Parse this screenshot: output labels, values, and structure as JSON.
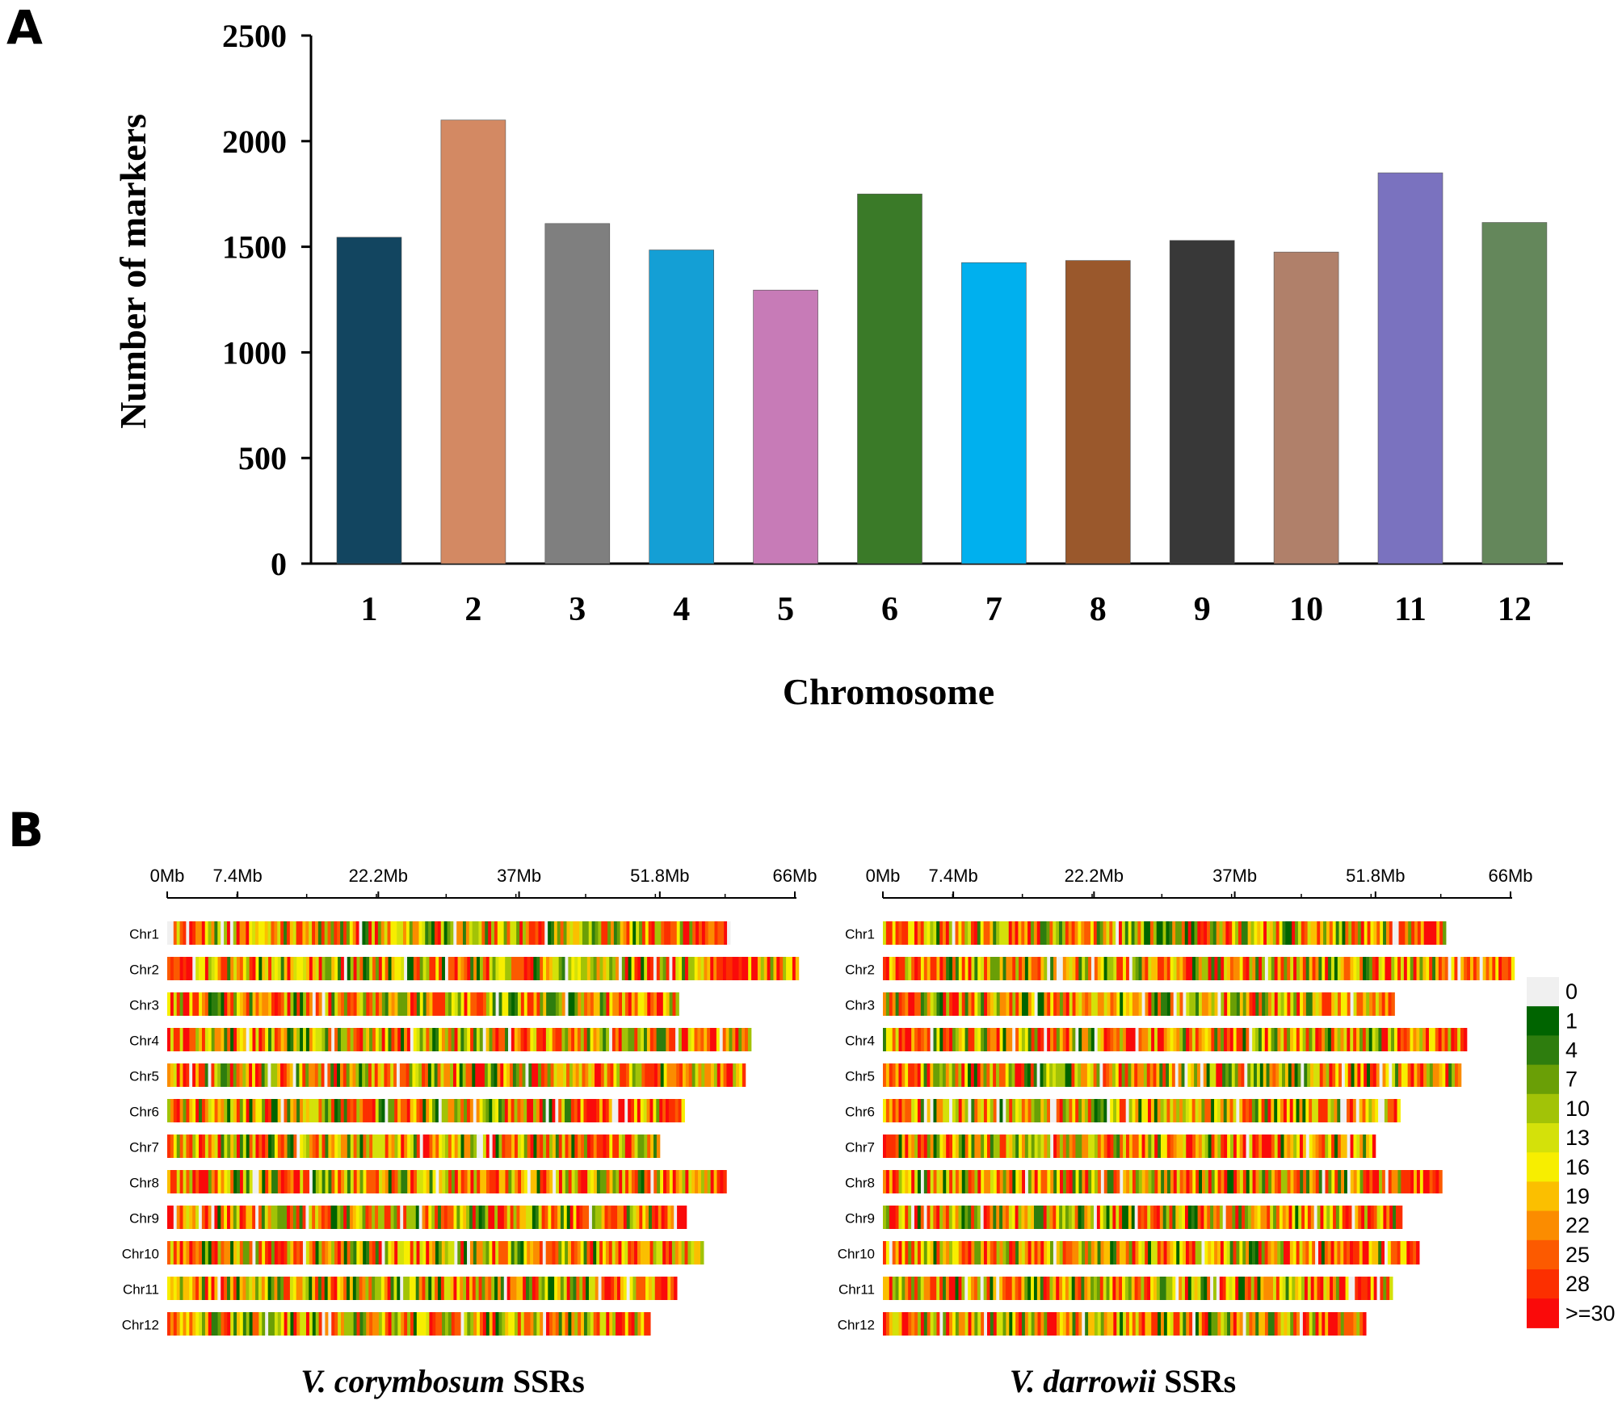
{
  "panels": {
    "a_label": "A",
    "b_label": "B"
  },
  "chart_data": [
    {
      "type": "bar",
      "panel": "A",
      "title": "",
      "xlabel": "Chromosome",
      "ylabel": "Number of markers",
      "ylim": [
        0,
        2500
      ],
      "yticks": [
        "0",
        "500",
        "1000",
        "1500",
        "2000",
        "2500"
      ],
      "categories": [
        "1",
        "2",
        "3",
        "4",
        "5",
        "6",
        "7",
        "8",
        "9",
        "10",
        "11",
        "12"
      ],
      "values": [
        1545,
        2100,
        1610,
        1485,
        1295,
        1750,
        1425,
        1435,
        1530,
        1475,
        1850,
        1615
      ],
      "colors": [
        "#124560",
        "#d38963",
        "#7f7f7f",
        "#149fd5",
        "#c77bb7",
        "#3a7a28",
        "#00b0ee",
        "#9a582c",
        "#383838",
        "#b0806a",
        "#7a72bf",
        "#64875b"
      ],
      "grid": false
    },
    {
      "type": "heatmap",
      "panel": "B",
      "subtitles": [
        {
          "italic": "V. corymbosum",
          "rest": " SSRs"
        },
        {
          "italic": "V. darrowii",
          "rest": " SSRs"
        }
      ],
      "axis_ticks": [
        "0Mb",
        "7.4Mb",
        "22.2Mb",
        "37Mb",
        "51.8Mb",
        "66Mb"
      ],
      "axis_tick_values_mb": [
        0,
        7.4,
        22.2,
        37,
        51.8,
        66
      ],
      "chromosomes": [
        "Chr1",
        "Chr2",
        "Chr3",
        "Chr4",
        "Chr5",
        "Chr6",
        "Chr7",
        "Chr8",
        "Chr9",
        "Chr10",
        "Chr11",
        "Chr12"
      ],
      "lengths_mb": {
        "corymbosum": [
          59.2,
          66.4,
          53.8,
          61.4,
          60.8,
          54.4,
          51.8,
          58.8,
          54.6,
          56.4,
          53.6,
          50.8
        ],
        "darrowii": [
          59.2,
          66.4,
          53.8,
          61.4,
          60.8,
          54.4,
          51.8,
          58.8,
          54.6,
          56.4,
          53.6,
          50.8
        ]
      },
      "legend": {
        "labels": [
          "0",
          "1",
          "4",
          "7",
          "10",
          "13",
          "16",
          "19",
          "22",
          "25",
          "28",
          ">=30"
        ],
        "colors": [
          "#f0f0f0",
          "#006400",
          "#2e7d0e",
          "#6a9f06",
          "#a2c307",
          "#d4e10a",
          "#f7ee00",
          "#fbbf00",
          "#fb8c00",
          "#fc5a00",
          "#fc2f00",
          "#fa0a0a"
        ]
      }
    }
  ]
}
